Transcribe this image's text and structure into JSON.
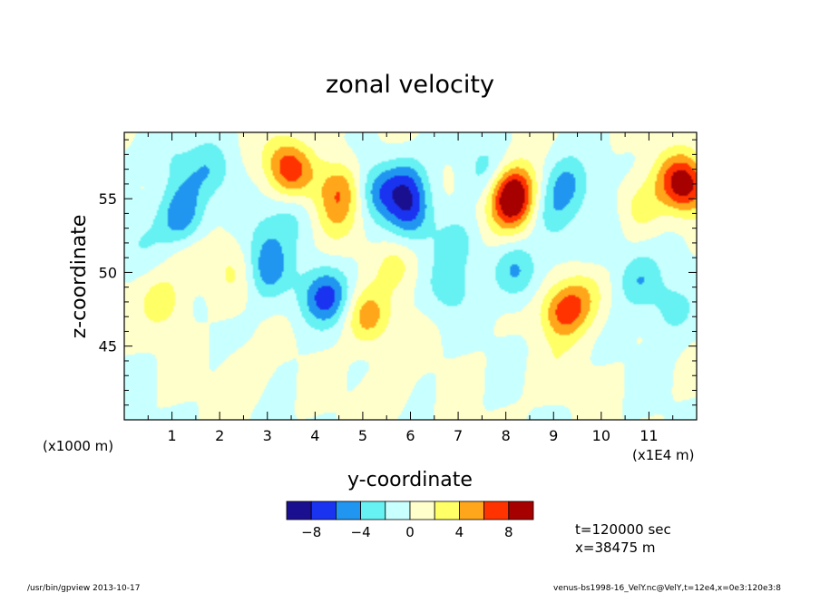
{
  "chart_data": {
    "type": "heatmap",
    "title": "zonal velocity",
    "xlabel": "y-coordinate",
    "ylabel": "z-coordinate",
    "x_units_label": "(x1E4 m)",
    "y_units_label": "(x1000 m)",
    "xlim": [
      0,
      12
    ],
    "ylim": [
      40,
      59.5
    ],
    "x_ticks": [
      1,
      2,
      3,
      4,
      5,
      6,
      7,
      8,
      9,
      10,
      11
    ],
    "y_ticks": [
      45,
      50,
      55
    ],
    "colorbar": {
      "levels": [
        -10,
        -8,
        -6,
        -4,
        -2,
        0,
        2,
        4,
        6,
        8,
        10
      ],
      "colors": [
        "#1a0f8f",
        "#1a33f0",
        "#2196f0",
        "#66f2f2",
        "#c8ffff",
        "#ffffcc",
        "#ffff66",
        "#ffa61a",
        "#ff3300",
        "#a60000"
      ],
      "tick_labels": [
        "-8",
        "-4",
        "0",
        "4",
        "8"
      ],
      "tick_values": [
        -8,
        -4,
        0,
        4,
        8
      ]
    },
    "features": [
      {
        "x": 8.15,
        "z": 55.4,
        "value": 9.2
      },
      {
        "x": 8.1,
        "z": 54.0,
        "value": 4.0
      },
      {
        "x": 11.8,
        "z": 55.8,
        "value": 7.0
      },
      {
        "x": 11.5,
        "z": 56.5,
        "value": 3.5
      },
      {
        "x": 9.2,
        "z": 47.3,
        "value": 6.0
      },
      {
        "x": 9.6,
        "z": 48.3,
        "value": 3.5
      },
      {
        "x": 3.55,
        "z": 56.8,
        "value": 5.0
      },
      {
        "x": 3.3,
        "z": 57.5,
        "value": 3.0
      },
      {
        "x": 4.55,
        "z": 55.8,
        "value": 5.0
      },
      {
        "x": 4.4,
        "z": 54.0,
        "value": 3.0
      },
      {
        "x": 5.1,
        "z": 47.0,
        "value": 5.0
      },
      {
        "x": 0.8,
        "z": 48.0,
        "value": 3.0
      },
      {
        "x": 10.85,
        "z": 54.5,
        "value": 3.0
      },
      {
        "x": 5.7,
        "z": 50.5,
        "value": 2.5
      },
      {
        "x": 2.3,
        "z": 50.0,
        "value": 2.0
      },
      {
        "x": 1.4,
        "z": 51.0,
        "value": 2.0
      },
      {
        "x": 2.5,
        "z": 43.0,
        "value": 1.5
      },
      {
        "x": 5.5,
        "z": 42.0,
        "value": 1.5
      },
      {
        "x": 9.0,
        "z": 43.0,
        "value": 1.5
      },
      {
        "x": 6.0,
        "z": 54.0,
        "value": -5.5
      },
      {
        "x": 5.9,
        "z": 56.0,
        "value": -5.0
      },
      {
        "x": 1.2,
        "z": 53.5,
        "value": -5.0
      },
      {
        "x": 1.3,
        "z": 55.5,
        "value": -2.5
      },
      {
        "x": 4.3,
        "z": 48.5,
        "value": -5.0
      },
      {
        "x": 4.0,
        "z": 48.0,
        "value": -2.5
      },
      {
        "x": 5.3,
        "z": 55.5,
        "value": -4.5
      },
      {
        "x": 3.0,
        "z": 50.0,
        "value": -4.5
      },
      {
        "x": 3.0,
        "z": 52.0,
        "value": -2.5
      },
      {
        "x": 8.2,
        "z": 50.0,
        "value": -4.5
      },
      {
        "x": 9.3,
        "z": 56.0,
        "value": -4.5
      },
      {
        "x": 9.0,
        "z": 54.0,
        "value": -3.0
      },
      {
        "x": 10.8,
        "z": 49.5,
        "value": -4.0
      },
      {
        "x": 6.8,
        "z": 49.0,
        "value": -3.0
      },
      {
        "x": 7.0,
        "z": 52.0,
        "value": -3.0
      },
      {
        "x": 3.5,
        "z": 54.0,
        "value": -2.5
      },
      {
        "x": 7.6,
        "z": 57.0,
        "value": -2.5
      },
      {
        "x": 11.5,
        "z": 47.5,
        "value": -3.0
      },
      {
        "x": 1.8,
        "z": 57.0,
        "value": -3.0
      },
      {
        "x": 0.9,
        "z": 58.0,
        "value": -2.0
      },
      {
        "x": 10.0,
        "z": 52.5,
        "value": -2.0
      },
      {
        "x": 0.3,
        "z": 52.0,
        "value": -1.5
      }
    ]
  },
  "info": {
    "time": "t=120000 sec",
    "position": "x=38475 m"
  },
  "footer": {
    "left": "/usr/bin/gpview   2013-10-17",
    "right": "venus-bs1998-16_VelY.nc@VelY,t=12e4,x=0e3:120e3:8"
  }
}
